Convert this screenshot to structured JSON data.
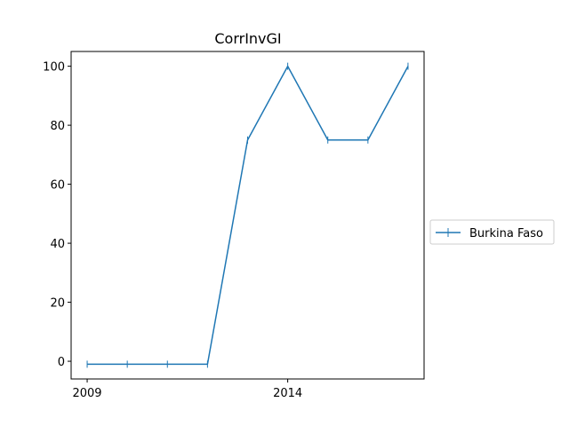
{
  "chart_data": {
    "type": "line",
    "title": "CorrInvGI",
    "xlabel": "",
    "ylabel": "",
    "x": [
      2009,
      2010,
      2011,
      2012,
      2013,
      2014,
      2015,
      2016,
      2017
    ],
    "series": [
      {
        "name": "Burkina Faso",
        "values": [
          -1,
          -1,
          -1,
          -1,
          75,
          100,
          75,
          75,
          100
        ],
        "color": "#1f77b4",
        "marker": "vline"
      }
    ],
    "xticks": [
      2009,
      2014
    ],
    "xtick_labels": [
      "2009",
      "2014"
    ],
    "yticks": [
      0,
      20,
      40,
      60,
      80,
      100
    ],
    "ytick_labels": [
      "0",
      "20",
      "40",
      "60",
      "80",
      "100"
    ],
    "xlim": [
      2008.6,
      2017.4
    ],
    "ylim": [
      -6,
      105
    ],
    "grid": false,
    "legend": "right-outside"
  }
}
